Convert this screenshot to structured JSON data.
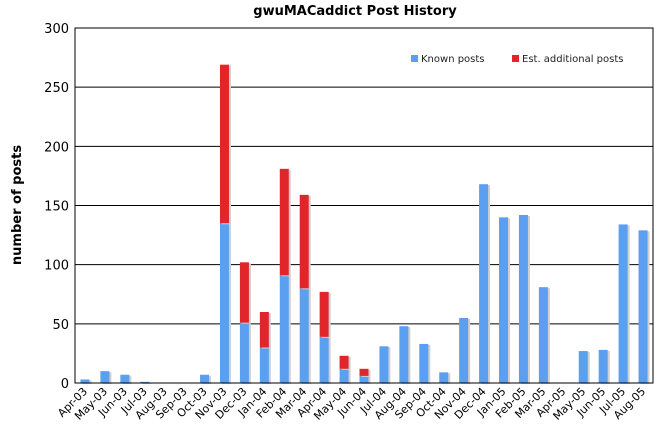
{
  "chart_data": {
    "type": "bar",
    "stacked": true,
    "title": "gwuMACaddict Post History",
    "xlabel": "",
    "ylabel": "number of posts",
    "ylim": [
      0,
      300
    ],
    "yticks": [
      0,
      50,
      100,
      150,
      200,
      250,
      300
    ],
    "grid": true,
    "legend": "top-right",
    "categories": [
      "Apr-03",
      "May-03",
      "Jun-03",
      "Jul-03",
      "Aug-03",
      "Sep-03",
      "Oct-03",
      "Nov-03",
      "Dec-03",
      "Jan-04",
      "Feb-04",
      "Mar-04",
      "Apr-04",
      "May-04",
      "Jun-04",
      "Jul-04",
      "Aug-04",
      "Sep-04",
      "Oct-04",
      "Nov-04",
      "Dec-04",
      "Jan-05",
      "Feb-05",
      "Mar-05",
      "Apr-05",
      "May-05",
      "Jun-05",
      "Jul-05",
      "Aug-05"
    ],
    "series": [
      {
        "name": "Known posts",
        "color": "#5b9ff0",
        "values": [
          3,
          10,
          7,
          1,
          0,
          0,
          7,
          135,
          51,
          30,
          91,
          80,
          39,
          12,
          6,
          31,
          48,
          33,
          9,
          55,
          168,
          140,
          142,
          81,
          0,
          27,
          28,
          134,
          129
        ]
      },
      {
        "name": "Est. additional posts",
        "color": "#e0262b",
        "values": [
          0,
          0,
          0,
          0,
          0,
          0,
          0,
          134,
          51,
          30,
          90,
          79,
          38,
          11,
          6,
          0,
          0,
          0,
          0,
          0,
          0,
          0,
          0,
          0,
          0,
          0,
          0,
          0,
          0
        ]
      }
    ]
  }
}
